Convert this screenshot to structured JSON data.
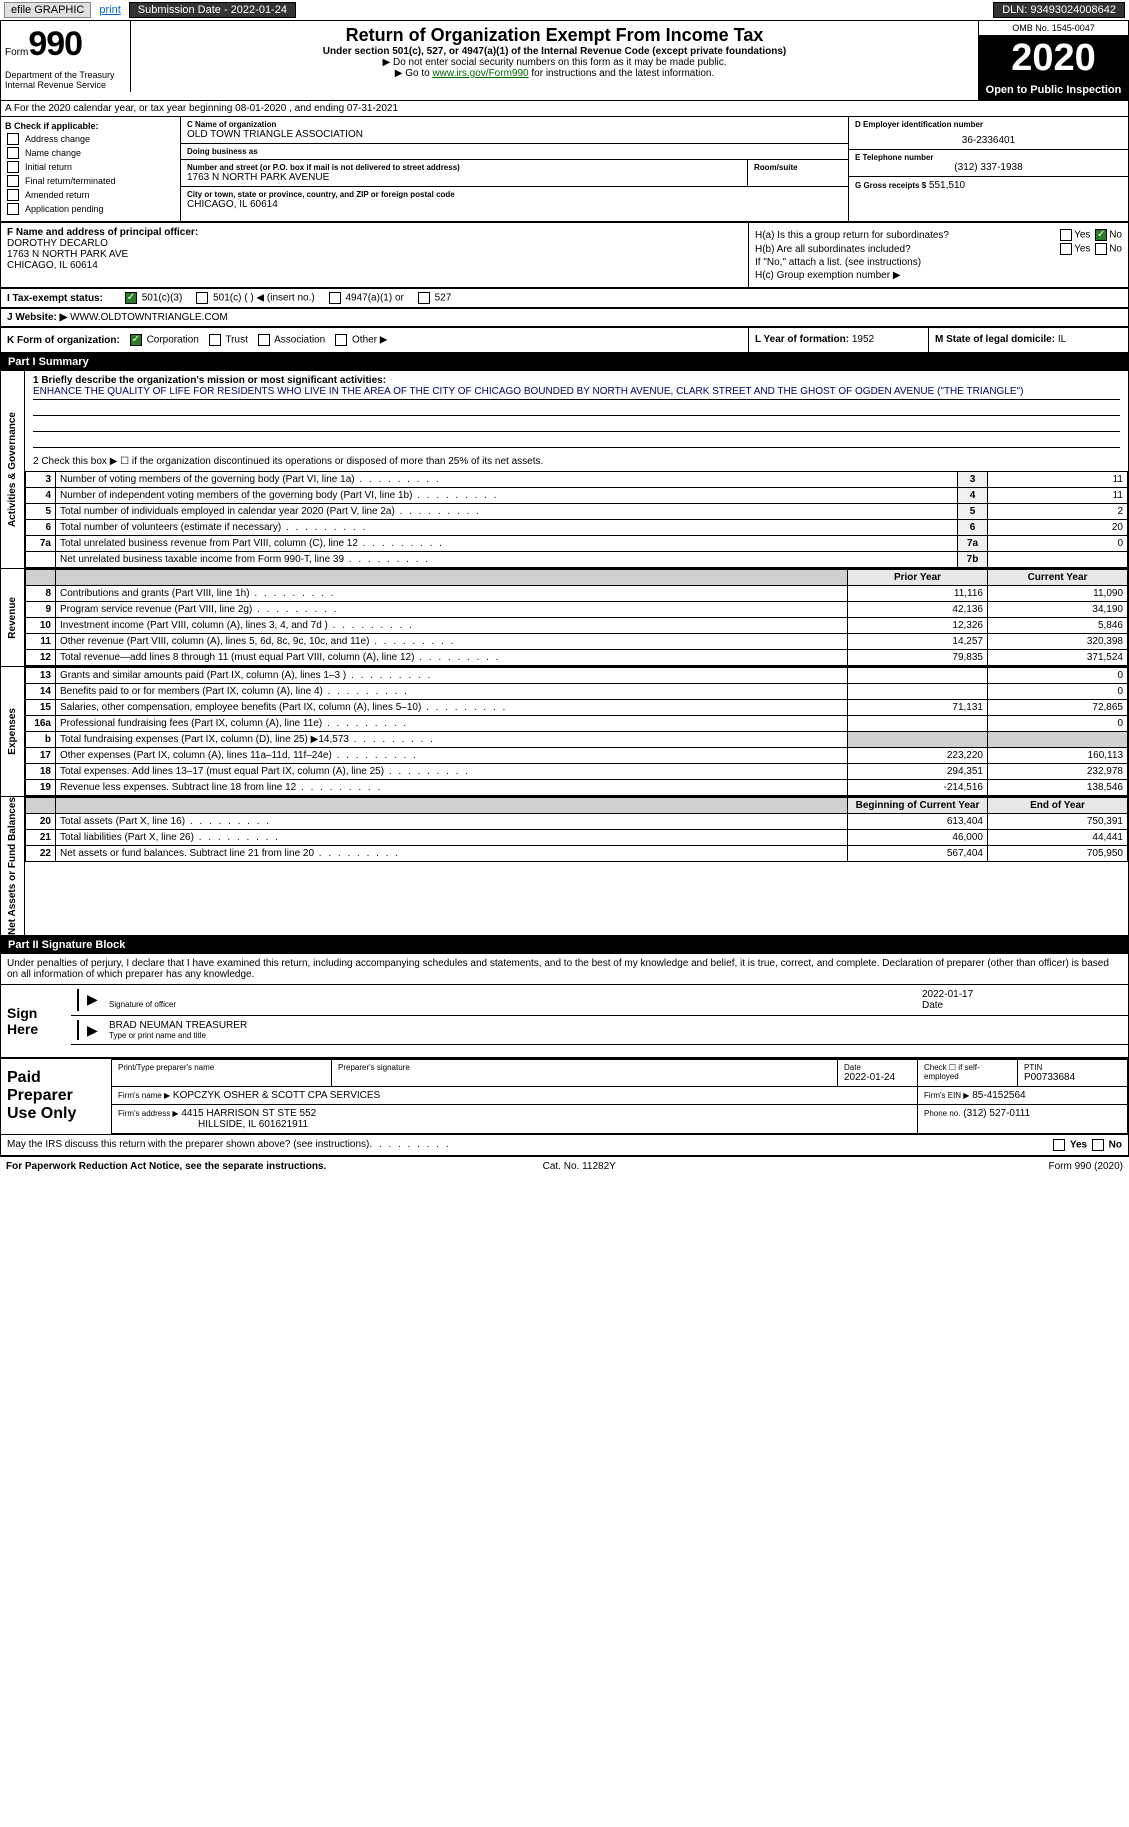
{
  "topbar": {
    "efile_label": "efile GRAPHIC",
    "print_label": "print",
    "submission_label": "Submission Date - 2022-01-24",
    "dln_label": "DLN: 93493024008642"
  },
  "header": {
    "form_word": "Form",
    "form_number": "990",
    "dept1": "Department of the Treasury",
    "dept2": "Internal Revenue Service",
    "title": "Return of Organization Exempt From Income Tax",
    "subtitle": "Under section 501(c), 527, or 4947(a)(1) of the Internal Revenue Code (except private foundations)",
    "instr1": "▶ Do not enter social security numbers on this form as it may be made public.",
    "instr2_pre": "▶ Go to ",
    "instr2_link": "www.irs.gov/Form990",
    "instr2_post": " for instructions and the latest information.",
    "omb": "OMB No. 1545-0047",
    "year": "2020",
    "open_public": "Open to Public Inspection"
  },
  "period": "A For the 2020 calendar year, or tax year beginning 08-01-2020   , and ending 07-31-2021",
  "col_b": {
    "label": "B Check if applicable:",
    "items": [
      "Address change",
      "Name change",
      "Initial return",
      "Final return/terminated",
      "Amended return",
      "Application pending"
    ]
  },
  "col_c": {
    "name_label": "C Name of organization",
    "name": "OLD TOWN TRIANGLE ASSOCIATION",
    "dba_label": "Doing business as",
    "dba": "",
    "street_label": "Number and street (or P.O. box if mail is not delivered to street address)",
    "room_label": "Room/suite",
    "street": "1763 N NORTH PARK AVENUE",
    "city_label": "City or town, state or province, country, and ZIP or foreign postal code",
    "city": "CHICAGO, IL  60614"
  },
  "col_de": {
    "d_label": "D Employer identification number",
    "ein": "36-2336401",
    "e_label": "E Telephone number",
    "phone": "(312) 337-1938",
    "g_label": "G Gross receipts $",
    "gross": "551,510"
  },
  "officer": {
    "label": "F Name and address of principal officer:",
    "name": "DOROTHY DECARLO",
    "addr1": "1763 N NORTH PARK AVE",
    "addr2": "CHICAGO, IL  60614"
  },
  "h_section": {
    "ha_label": "H(a)  Is this a group return for subordinates?",
    "hb_label": "H(b)  Are all subordinates included?",
    "hb_note": "If \"No,\" attach a list. (see instructions)",
    "hc_label": "H(c)  Group exemption number ▶",
    "yes": "Yes",
    "no": "No"
  },
  "tax_status": {
    "label": "I   Tax-exempt status:",
    "opt1": "501(c)(3)",
    "opt2": "501(c) (  ) ◀ (insert no.)",
    "opt3": "4947(a)(1) or",
    "opt4": "527"
  },
  "website": {
    "label": "J   Website: ▶",
    "value": "WWW.OLDTOWNTRIANGLE.COM"
  },
  "korg": {
    "label": "K Form of organization:",
    "opts": [
      "Corporation",
      "Trust",
      "Association",
      "Other ▶"
    ],
    "l_label": "L Year of formation:",
    "l_val": "1952",
    "m_label": "M State of legal domicile:",
    "m_val": "IL"
  },
  "part1": {
    "header": "Part I    Summary",
    "tab_gov": "Activities & Governance",
    "tab_rev": "Revenue",
    "tab_exp": "Expenses",
    "tab_net": "Net Assets or Fund Balances",
    "q1_label": "1 Briefly describe the organization's mission or most significant activities:",
    "q1_text": "ENHANCE THE QUALITY OF LIFE FOR RESIDENTS WHO LIVE IN THE AREA OF THE CITY OF CHICAGO BOUNDED BY NORTH AVENUE, CLARK STREET AND THE GHOST OF OGDEN AVENUE (\"THE TRIANGLE\")",
    "q2": "2   Check this box ▶ ☐  if the organization discontinued its operations or disposed of more than 25% of its net assets.",
    "rows_gov": [
      {
        "n": "3",
        "desc": "Number of voting members of the governing body (Part VI, line 1a)",
        "code": "3",
        "val": "11"
      },
      {
        "n": "4",
        "desc": "Number of independent voting members of the governing body (Part VI, line 1b)",
        "code": "4",
        "val": "11"
      },
      {
        "n": "5",
        "desc": "Total number of individuals employed in calendar year 2020 (Part V, line 2a)",
        "code": "5",
        "val": "2"
      },
      {
        "n": "6",
        "desc": "Total number of volunteers (estimate if necessary)",
        "code": "6",
        "val": "20"
      },
      {
        "n": "7a",
        "desc": "Total unrelated business revenue from Part VIII, column (C), line 12",
        "code": "7a",
        "val": "0"
      },
      {
        "n": "",
        "desc": "Net unrelated business taxable income from Form 990-T, line 39",
        "code": "7b",
        "val": ""
      }
    ],
    "money_hdr_prior": "Prior Year",
    "money_hdr_curr": "Current Year",
    "rows_rev": [
      {
        "n": "8",
        "desc": "Contributions and grants (Part VIII, line 1h)",
        "py": "11,116",
        "cy": "11,090"
      },
      {
        "n": "9",
        "desc": "Program service revenue (Part VIII, line 2g)",
        "py": "42,136",
        "cy": "34,190"
      },
      {
        "n": "10",
        "desc": "Investment income (Part VIII, column (A), lines 3, 4, and 7d )",
        "py": "12,326",
        "cy": "5,846"
      },
      {
        "n": "11",
        "desc": "Other revenue (Part VIII, column (A), lines 5, 6d, 8c, 9c, 10c, and 11e)",
        "py": "14,257",
        "cy": "320,398"
      },
      {
        "n": "12",
        "desc": "Total revenue—add lines 8 through 11 (must equal Part VIII, column (A), line 12)",
        "py": "79,835",
        "cy": "371,524"
      }
    ],
    "rows_exp": [
      {
        "n": "13",
        "desc": "Grants and similar amounts paid (Part IX, column (A), lines 1–3 )",
        "py": "",
        "cy": "0"
      },
      {
        "n": "14",
        "desc": "Benefits paid to or for members (Part IX, column (A), line 4)",
        "py": "",
        "cy": "0"
      },
      {
        "n": "15",
        "desc": "Salaries, other compensation, employee benefits (Part IX, column (A), lines 5–10)",
        "py": "71,131",
        "cy": "72,865"
      },
      {
        "n": "16a",
        "desc": "Professional fundraising fees (Part IX, column (A), line 11e)",
        "py": "",
        "cy": "0"
      },
      {
        "n": "b",
        "desc": "Total fundraising expenses (Part IX, column (D), line 25) ▶14,573",
        "py": "SHADE",
        "cy": "SHADE"
      },
      {
        "n": "17",
        "desc": "Other expenses (Part IX, column (A), lines 11a–11d, 11f–24e)",
        "py": "223,220",
        "cy": "160,113"
      },
      {
        "n": "18",
        "desc": "Total expenses. Add lines 13–17 (must equal Part IX, column (A), line 25)",
        "py": "294,351",
        "cy": "232,978"
      },
      {
        "n": "19",
        "desc": "Revenue less expenses. Subtract line 18 from line 12",
        "py": "-214,516",
        "cy": "138,546"
      }
    ],
    "net_hdr_beg": "Beginning of Current Year",
    "net_hdr_end": "End of Year",
    "rows_net": [
      {
        "n": "20",
        "desc": "Total assets (Part X, line 16)",
        "py": "613,404",
        "cy": "750,391"
      },
      {
        "n": "21",
        "desc": "Total liabilities (Part X, line 26)",
        "py": "46,000",
        "cy": "44,441"
      },
      {
        "n": "22",
        "desc": "Net assets or fund balances. Subtract line 21 from line 20",
        "py": "567,404",
        "cy": "705,950"
      }
    ]
  },
  "part2": {
    "header": "Part II    Signature Block",
    "decl": "Under penalties of perjury, I declare that I have examined this return, including accompanying schedules and statements, and to the best of my knowledge and belief, it is true, correct, and complete. Declaration of preparer (other than officer) is based on all information of which preparer has any knowledge.",
    "sign_here": "Sign Here",
    "sig_officer_lbl": "Signature of officer",
    "sig_date": "2022-01-17",
    "date_lbl": "Date",
    "officer_name": "BRAD NEUMAN  TREASURER",
    "officer_name_lbl": "Type or print name and title",
    "paid_prep": "Paid Preparer Use Only",
    "prep_name_lbl": "Print/Type preparer's name",
    "prep_sig_lbl": "Preparer's signature",
    "prep_date_lbl": "Date",
    "prep_date": "2022-01-24",
    "prep_check_lbl": "Check ☐ if self-employed",
    "ptin_lbl": "PTIN",
    "ptin": "P00733684",
    "firm_name_lbl": "Firm's name    ▶",
    "firm_name": "KOPCZYK OSHER & SCOTT CPA SERVICES",
    "firm_ein_lbl": "Firm's EIN ▶",
    "firm_ein": "85-4152564",
    "firm_addr_lbl": "Firm's address ▶",
    "firm_addr1": "4415 HARRISON ST STE 552",
    "firm_addr2": "HILLSIDE, IL  601621911",
    "firm_phone_lbl": "Phone no.",
    "firm_phone": "(312) 527-0111",
    "discuss": "May the IRS discuss this return with the preparer shown above? (see instructions)",
    "footer_l": "For Paperwork Reduction Act Notice, see the separate instructions.",
    "footer_c": "Cat. No. 11282Y",
    "footer_r": "Form 990 (2020)"
  }
}
